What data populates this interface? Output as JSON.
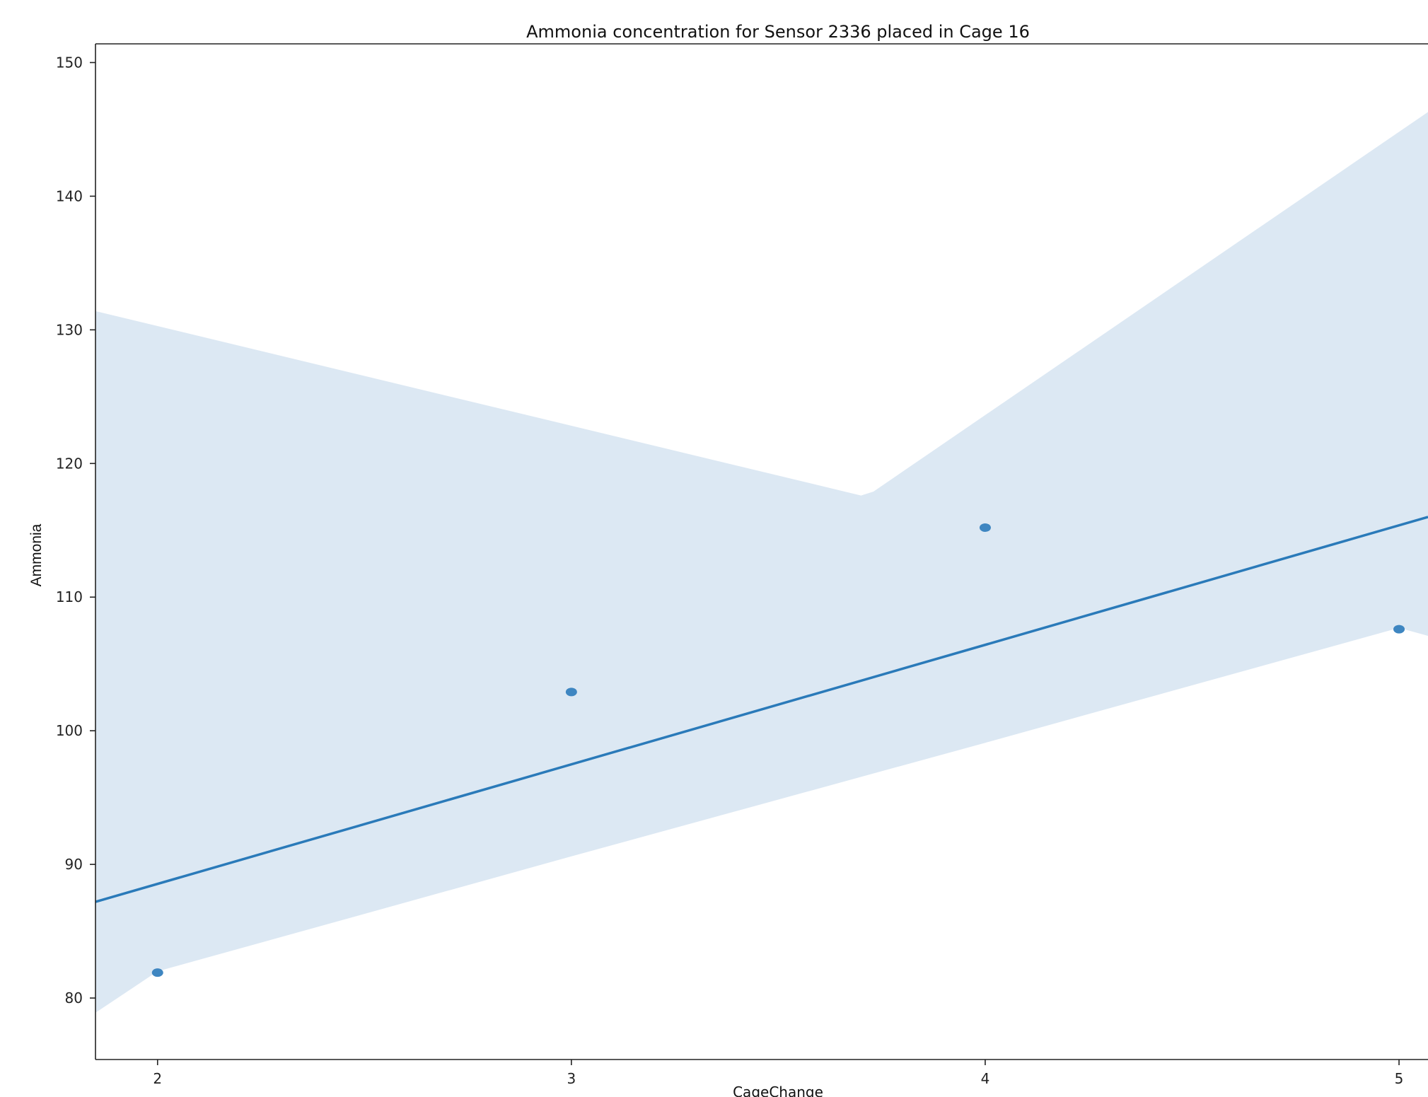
{
  "chart_data": {
    "type": "scatter",
    "title": "Ammonia concentration for Sensor 2336 placed in Cage 16",
    "xlabel": "CageChange",
    "ylabel": "Ammonia",
    "xlim": [
      1.85,
      5.07
    ],
    "ylim": [
      75.4,
      151.4
    ],
    "xticks": [
      2,
      3,
      4,
      5
    ],
    "yticks": [
      80,
      90,
      100,
      110,
      120,
      130,
      140,
      150
    ],
    "grid": false,
    "series": [
      {
        "color": "#3e86c1",
        "points": [
          {
            "x": 2,
            "y": 81.9
          },
          {
            "x": 3,
            "y": 102.9
          },
          {
            "x": 4,
            "y": 115.2
          },
          {
            "x": 5,
            "y": 107.6
          }
        ]
      }
    ],
    "regression_line": {
      "color": "#2a7ab9",
      "points": [
        {
          "x": 1.85,
          "y": 87.2
        },
        {
          "x": 5.07,
          "y": 116.0
        }
      ]
    },
    "confidence_band": {
      "color": "#dce8f3",
      "upper": [
        {
          "x": 1.85,
          "y": 131.4
        },
        {
          "x": 3.7,
          "y": 117.6
        },
        {
          "x": 3.73,
          "y": 117.9
        },
        {
          "x": 5.07,
          "y": 146.3
        }
      ],
      "lower": [
        {
          "x": 1.85,
          "y": 78.9
        },
        {
          "x": 2.0,
          "y": 82.0
        },
        {
          "x": 3.0,
          "y": 90.6
        },
        {
          "x": 4.0,
          "y": 99.1
        },
        {
          "x": 5.0,
          "y": 107.7
        },
        {
          "x": 5.07,
          "y": 107.1
        }
      ]
    }
  }
}
